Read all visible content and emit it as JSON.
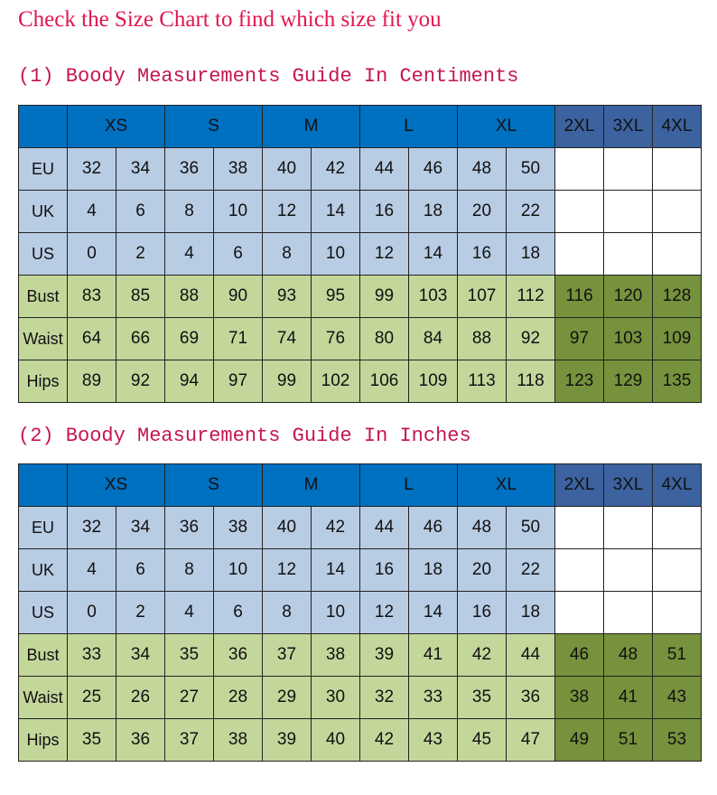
{
  "title": "Check the Size Chart to find which size fit you",
  "colors": {
    "title": "#e0164e",
    "header_blue": "#0070c0",
    "header_dark_blue": "#3c62a0",
    "light_blue": "#b8cce4",
    "light_green": "#c4d79b",
    "dark_green": "#76923c"
  },
  "tables": [
    {
      "heading": "(1) Boody Measurements Guide In Centiments",
      "sizes": [
        "XS",
        "S",
        "M",
        "L",
        "XL"
      ],
      "extra_sizes": [
        "2XL",
        "3XL",
        "4XL"
      ],
      "rows": [
        {
          "label": "EU",
          "values": [
            "32",
            "34",
            "36",
            "38",
            "40",
            "42",
            "44",
            "46",
            "48",
            "50"
          ],
          "extra": [
            "",
            "",
            ""
          ]
        },
        {
          "label": "UK",
          "values": [
            "4",
            "6",
            "8",
            "10",
            "12",
            "14",
            "16",
            "18",
            "20",
            "22"
          ],
          "extra": [
            "",
            "",
            ""
          ]
        },
        {
          "label": "US",
          "values": [
            "0",
            "2",
            "4",
            "6",
            "8",
            "10",
            "12",
            "14",
            "16",
            "18"
          ],
          "extra": [
            "",
            "",
            ""
          ]
        },
        {
          "label": "Bust",
          "values": [
            "83",
            "85",
            "88",
            "90",
            "93",
            "95",
            "99",
            "103",
            "107",
            "112"
          ],
          "extra": [
            "116",
            "120",
            "128"
          ]
        },
        {
          "label": "Waist",
          "values": [
            "64",
            "66",
            "69",
            "71",
            "74",
            "76",
            "80",
            "84",
            "88",
            "92"
          ],
          "extra": [
            "97",
            "103",
            "109"
          ]
        },
        {
          "label": "Hips",
          "values": [
            "89",
            "92",
            "94",
            "97",
            "99",
            "102",
            "106",
            "109",
            "113",
            "118"
          ],
          "extra": [
            "123",
            "129",
            "135"
          ]
        }
      ]
    },
    {
      "heading": "(2) Boody Measurements Guide In Inches",
      "sizes": [
        "XS",
        "S",
        "M",
        "L",
        "XL"
      ],
      "extra_sizes": [
        "2XL",
        "3XL",
        "4XL"
      ],
      "rows": [
        {
          "label": "EU",
          "values": [
            "32",
            "34",
            "36",
            "38",
            "40",
            "42",
            "44",
            "46",
            "48",
            "50"
          ],
          "extra": [
            "",
            "",
            ""
          ]
        },
        {
          "label": "UK",
          "values": [
            "4",
            "6",
            "8",
            "10",
            "12",
            "14",
            "16",
            "18",
            "20",
            "22"
          ],
          "extra": [
            "",
            "",
            ""
          ]
        },
        {
          "label": "US",
          "values": [
            "0",
            "2",
            "4",
            "6",
            "8",
            "10",
            "12",
            "14",
            "16",
            "18"
          ],
          "extra": [
            "",
            "",
            ""
          ]
        },
        {
          "label": "Bust",
          "values": [
            "33",
            "34",
            "35",
            "36",
            "37",
            "38",
            "39",
            "41",
            "42",
            "44"
          ],
          "extra": [
            "46",
            "48",
            "51"
          ]
        },
        {
          "label": "Waist",
          "values": [
            "25",
            "26",
            "27",
            "28",
            "29",
            "30",
            "32",
            "33",
            "35",
            "36"
          ],
          "extra": [
            "38",
            "41",
            "43"
          ]
        },
        {
          "label": "Hips",
          "values": [
            "35",
            "36",
            "37",
            "38",
            "39",
            "40",
            "42",
            "43",
            "45",
            "47"
          ],
          "extra": [
            "49",
            "51",
            "53"
          ]
        }
      ]
    }
  ]
}
